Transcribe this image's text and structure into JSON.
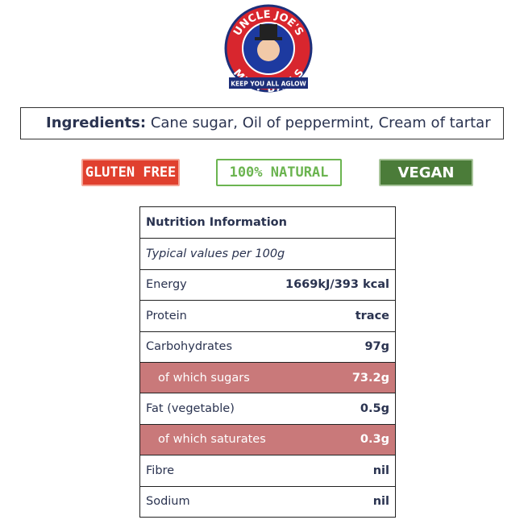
{
  "logo": {
    "brand": "UNCLE JOE'S",
    "product": "MINT BALLS",
    "tagline": "KEEP YOU ALL AGLOW"
  },
  "ingredients": {
    "label": "Ingredients:",
    "text": "Cane sugar, Oil of peppermint, Cream of tartar"
  },
  "badges": [
    "GLUTEN FREE",
    "100% NATURAL",
    "VEGAN"
  ],
  "nutrition": {
    "title": "Nutrition Information",
    "subtitle": "Typical values per 100g",
    "rows": [
      {
        "name": "Energy",
        "value": "1669kJ/393 kcal",
        "highlight": false
      },
      {
        "name": "Protein",
        "value": "trace",
        "highlight": false
      },
      {
        "name": "Carbohydrates",
        "value": "97g",
        "highlight": false
      },
      {
        "name": "of which sugars",
        "value": "73.2g",
        "highlight": true
      },
      {
        "name": "Fat (vegetable)",
        "value": "0.5g",
        "highlight": false
      },
      {
        "name": "of which saturates",
        "value": "0.3g",
        "highlight": true
      },
      {
        "name": "Fibre",
        "value": "nil",
        "highlight": false
      },
      {
        "name": "Sodium",
        "value": "nil",
        "highlight": false
      }
    ]
  }
}
